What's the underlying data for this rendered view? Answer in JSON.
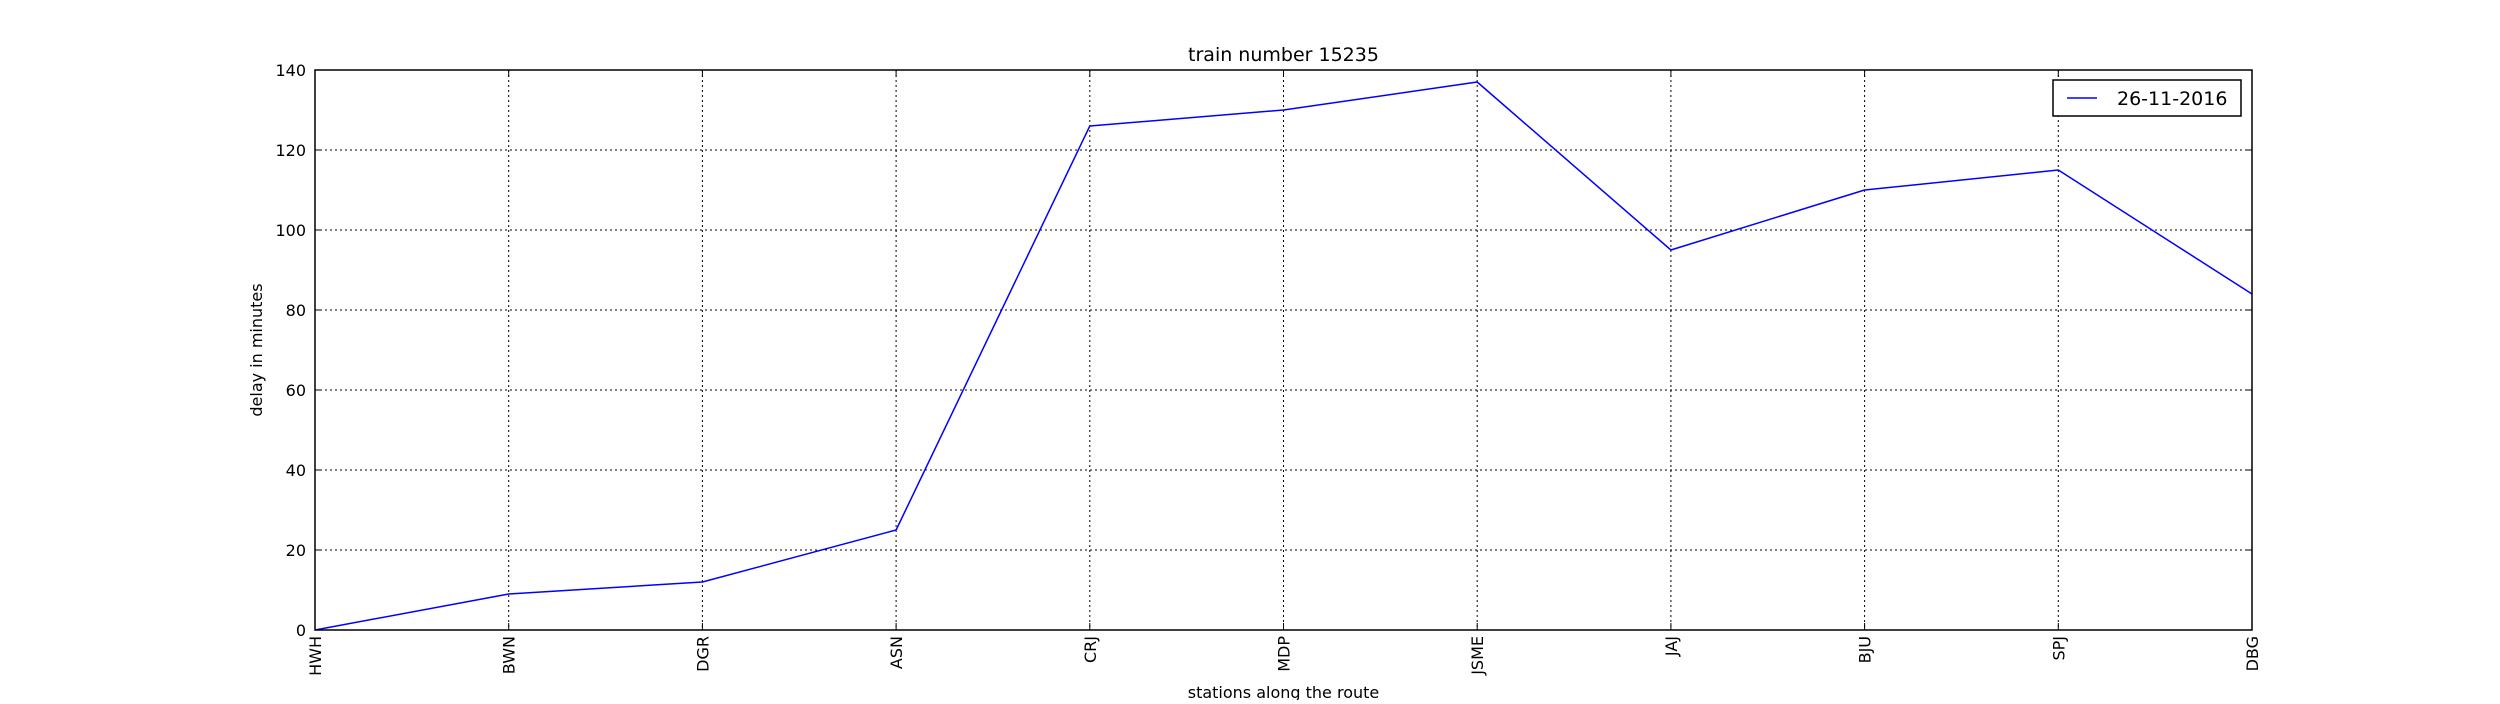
{
  "chart_data": {
    "type": "line",
    "title": "train number 15235",
    "xlabel": "stations along the route",
    "ylabel": "delay in minutes",
    "categories": [
      "HWH",
      "BWN",
      "DGR",
      "ASN",
      "CRJ",
      "MDP",
      "JSME",
      "JAJ",
      "BJU",
      "SPJ",
      "DBG"
    ],
    "series": [
      {
        "name": "26-11-2016",
        "values": [
          0,
          9,
          12,
          25,
          126,
          130,
          137,
          95,
          110,
          115,
          84
        ],
        "color": "#0000ff"
      }
    ],
    "ylim": [
      0,
      140
    ],
    "yticks": [
      0,
      20,
      40,
      60,
      80,
      100,
      120,
      140
    ],
    "grid": true,
    "legend_position": "top-right"
  }
}
